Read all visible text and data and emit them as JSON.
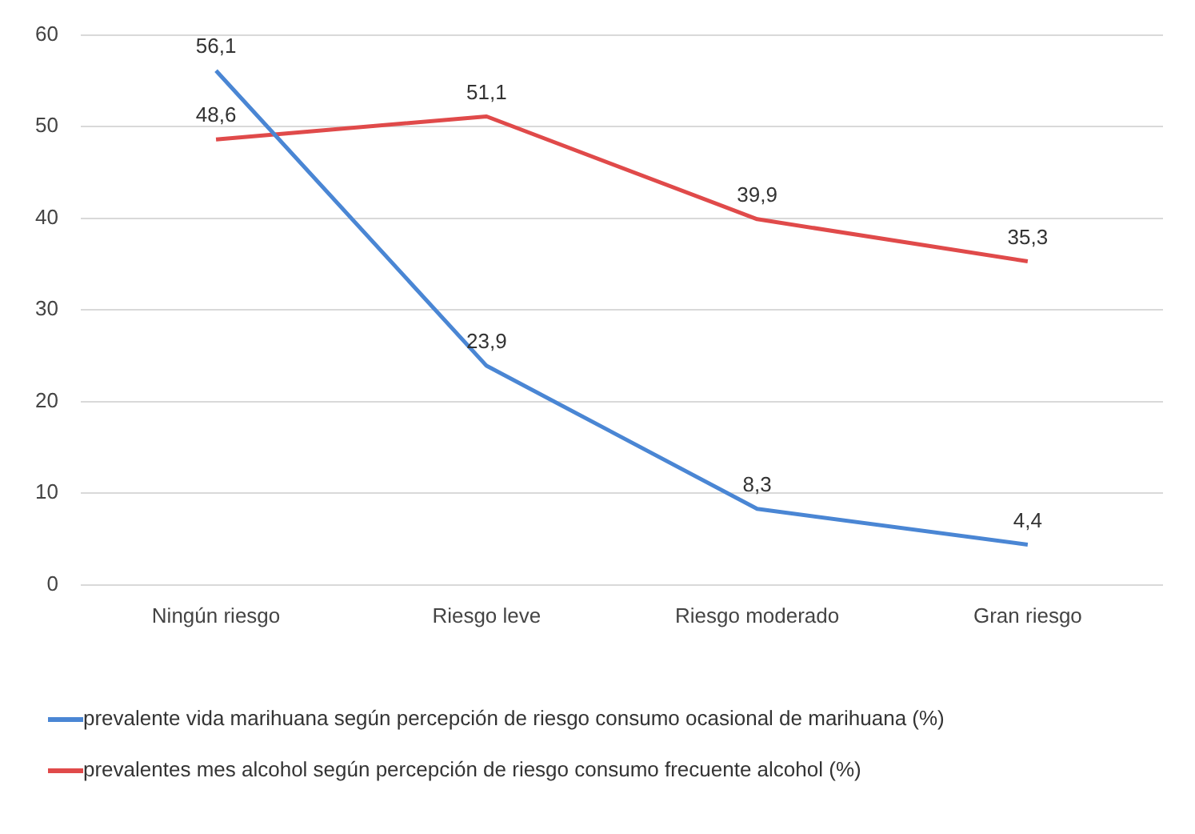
{
  "chart_data": {
    "type": "line",
    "categories": [
      "Ningún riesgo",
      "Riesgo leve",
      "Riesgo moderado",
      "Gran riesgo"
    ],
    "series": [
      {
        "name": "prevalente vida marihuana según percepción de riesgo consumo ocasional de marihuana (%)",
        "color": "#4a86d4",
        "values": [
          56.1,
          23.9,
          8.3,
          4.4
        ],
        "value_labels": [
          "56,1",
          "23,9",
          "8,3",
          "4,4"
        ]
      },
      {
        "name": "prevalentes mes alcohol según percepción de riesgo consumo frecuente alcohol (%)",
        "color": "#e04a4a",
        "values": [
          48.6,
          51.1,
          39.9,
          35.3
        ],
        "value_labels": [
          "48,6",
          "51,1",
          "39,9",
          "35,3"
        ]
      }
    ],
    "ylim": [
      0,
      60
    ],
    "yticks": [
      0,
      10,
      20,
      30,
      40,
      50,
      60
    ],
    "grid": "y",
    "legend": "bottom",
    "marker": "none",
    "line_style": "solid"
  }
}
